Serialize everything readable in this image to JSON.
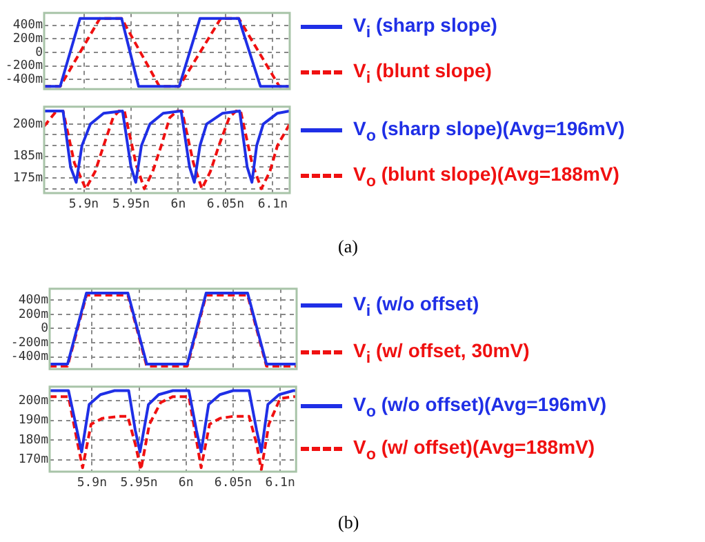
{
  "chart_data": [
    {
      "type": "line",
      "legend": "right",
      "grid": true,
      "marker": "none",
      "tick_labels": "y",
      "xlim": [
        5.858,
        6.118
      ],
      "xticks": [
        {
          "value": 5.9,
          "label": null
        },
        {
          "value": 5.95,
          "label": null
        },
        {
          "value": 6,
          "label": null
        },
        {
          "value": 6.05,
          "label": null
        },
        {
          "value": 6.1,
          "label": null
        }
      ],
      "ylim": [
        -540,
        580
      ],
      "yticks": [
        {
          "value": 400,
          "label": "400m"
        },
        {
          "value": 200,
          "label": "200m"
        },
        0,
        {
          "value": -200,
          "label": "-200m"
        },
        {
          "value": -400,
          "label": "-400m"
        }
      ],
      "series": [
        {
          "name": "V$_{i}$ (sharp slope)",
          "color": "#1f2fe6",
          "line_style": "solid",
          "x": [
            5.858,
            5.875,
            5.896,
            5.94,
            5.958,
            6.001,
            6.023,
            6.064,
            6.087,
            6.118
          ],
          "values": [
            -500,
            -500,
            500,
            500,
            -500,
            -500,
            500,
            500,
            -500,
            -500
          ]
        },
        {
          "name": "V$_{i}$ (blunt slope)",
          "color": "#f01010",
          "line_style": "dashed",
          "x": [
            5.858,
            5.875,
            5.917,
            5.94,
            5.98,
            6.001,
            6.045,
            6.064,
            6.107,
            6.118
          ],
          "values": [
            -500,
            -500,
            500,
            500,
            -500,
            -500,
            500,
            500,
            -500,
            -500
          ]
        }
      ]
    },
    {
      "type": "line",
      "legend": "right",
      "grid": true,
      "marker": "none",
      "annotations": [
        "(a)"
      ],
      "xlim": [
        5.858,
        6.118
      ],
      "xticks": [
        {
          "value": 5.9,
          "label": "5.9n"
        },
        {
          "value": 5.95,
          "label": "5.95n"
        },
        {
          "value": 6,
          "label": "6n"
        },
        {
          "value": 6.05,
          "label": "6.05n"
        },
        {
          "value": 6.1,
          "label": "6.1n"
        }
      ],
      "ylim": [
        168,
        208
      ],
      "yticks": [
        {
          "value": 200,
          "label": "200m"
        },
        {
          "value": 195,
          "label": null
        },
        {
          "value": 190,
          "label": null
        },
        {
          "value": 185,
          "label": "185m"
        },
        {
          "value": 180,
          "label": null
        },
        {
          "value": 175,
          "label": "175m"
        },
        {
          "value": 170,
          "label": null
        }
      ],
      "series": [
        {
          "name": "V$_{o}$ (sharp slope)(Avg=196mV)",
          "color": "#1f2fe6",
          "line_style": "solid",
          "x": [
            5.858,
            5.878,
            5.886,
            5.892,
            5.898,
            5.907,
            5.921,
            5.941,
            5.95,
            5.955,
            5.961,
            5.97,
            5.984,
            6.003,
            6.012,
            6.017,
            6.023,
            6.03,
            6.047,
            6.065,
            6.073,
            6.078,
            6.083,
            6.09,
            6.105,
            6.118
          ],
          "values": [
            206,
            206,
            180,
            173,
            190,
            200,
            205,
            206,
            180,
            173,
            190,
            200,
            205,
            206,
            180,
            173,
            190,
            200,
            205,
            206,
            180,
            173,
            190,
            200,
            205,
            206
          ]
        },
        {
          "name": "V$_{o}$ (blunt slope)(Avg=188mV)",
          "color": "#f01010",
          "line_style": "dashed",
          "x": [
            5.858,
            5.871,
            5.878,
            5.89,
            5.902,
            5.912,
            5.921,
            5.931,
            5.937,
            5.943,
            5.955,
            5.964,
            5.973,
            5.982,
            5.991,
            5.999,
            6.004,
            6.016,
            6.025,
            6.034,
            6.043,
            6.054,
            6.061,
            6.066,
            6.078,
            6.088,
            6.097,
            6.105,
            6.118
          ],
          "values": [
            199,
            206,
            206,
            182,
            170,
            178,
            190,
            203,
            206,
            206,
            182,
            170,
            178,
            190,
            203,
            206,
            206,
            182,
            170,
            178,
            190,
            203,
            206,
            206,
            182,
            170,
            178,
            190,
            200
          ]
        }
      ]
    },
    {
      "type": "line",
      "legend": "right",
      "grid": true,
      "marker": "none",
      "tick_labels": "y",
      "xlim": [
        5.855,
        6.117
      ],
      "xticks": [
        {
          "value": 5.9,
          "label": null
        },
        {
          "value": 5.95,
          "label": null
        },
        {
          "value": 6,
          "label": null
        },
        {
          "value": 6.05,
          "label": null
        },
        {
          "value": 6.1,
          "label": null
        }
      ],
      "ylim": [
        -570,
        560
      ],
      "yticks": [
        {
          "value": 400,
          "label": "400m"
        },
        {
          "value": 200,
          "label": "200m"
        },
        0,
        {
          "value": -200,
          "label": "-200m"
        },
        {
          "value": -400,
          "label": "-400m"
        }
      ],
      "series": [
        {
          "name": "V$_{i}$ (w/o offset)",
          "color": "#1f2fe6",
          "line_style": "solid",
          "x": [
            5.855,
            5.874,
            5.894,
            5.938,
            5.958,
            6.001,
            6.021,
            6.065,
            6.085,
            6.117
          ],
          "values": [
            -500,
            -500,
            500,
            500,
            -500,
            -500,
            500,
            500,
            -500,
            -500
          ]
        },
        {
          "name": "V$_{i}$ (w/ offset, 30mV)",
          "color": "#f01010",
          "line_style": "dashed",
          "x": [
            5.855,
            5.874,
            5.894,
            5.938,
            5.958,
            6.001,
            6.021,
            6.065,
            6.085,
            6.117
          ],
          "values": [
            -530,
            -530,
            470,
            470,
            -530,
            -530,
            470,
            470,
            -530,
            -530
          ]
        }
      ]
    },
    {
      "type": "line",
      "legend": "right",
      "grid": true,
      "marker": "none",
      "annotations": [
        "(b)"
      ],
      "xlim": [
        5.855,
        6.117
      ],
      "xticks": [
        {
          "value": 5.9,
          "label": "5.9n"
        },
        {
          "value": 5.95,
          "label": "5.95n"
        },
        {
          "value": 6,
          "label": "6n"
        },
        {
          "value": 6.05,
          "label": "6.05n"
        },
        {
          "value": 6.1,
          "label": "6.1n"
        }
      ],
      "ylim": [
        164,
        207
      ],
      "yticks": [
        {
          "value": 200,
          "label": "200m"
        },
        {
          "value": 190,
          "label": "190m"
        },
        {
          "value": 180,
          "label": "180m"
        },
        {
          "value": 170,
          "label": "170m"
        }
      ],
      "series": [
        {
          "name": "V$_{o}$ (w/o offset)(Avg=196mV)",
          "color": "#1f2fe6",
          "line_style": "solid",
          "x": [
            5.855,
            5.875,
            5.884,
            5.889,
            5.897,
            5.909,
            5.924,
            5.939,
            5.946,
            5.951,
            5.96,
            5.971,
            5.986,
            6.003,
            6.011,
            6.016,
            6.024,
            6.036,
            6.05,
            6.067,
            6.075,
            6.08,
            6.087,
            6.099,
            6.114,
            6.117
          ],
          "values": [
            205,
            205,
            185,
            174,
            198,
            203,
            205,
            205,
            185,
            174,
            198,
            203,
            205,
            205,
            185,
            174,
            198,
            203,
            205,
            205,
            185,
            174,
            198,
            203,
            205,
            205
          ]
        },
        {
          "name": "V$_{o}$ (w/ offset)(Avg=188mV)",
          "color": "#f01010",
          "line_style": "dashed",
          "x": [
            5.855,
            5.875,
            5.884,
            5.89,
            5.899,
            5.911,
            5.929,
            5.938,
            5.946,
            5.952,
            5.961,
            5.973,
            5.986,
            6.003,
            6.011,
            6.016,
            6.025,
            6.036,
            6.05,
            6.067,
            6.075,
            6.08,
            6.088,
            6.1,
            6.114,
            6.117
          ],
          "values": [
            202,
            202,
            180,
            166,
            188,
            191,
            192,
            192,
            178,
            165,
            188,
            199,
            202,
            202,
            180,
            166,
            188,
            191,
            192,
            192,
            178,
            165,
            188,
            201,
            202,
            202
          ]
        }
      ]
    }
  ]
}
